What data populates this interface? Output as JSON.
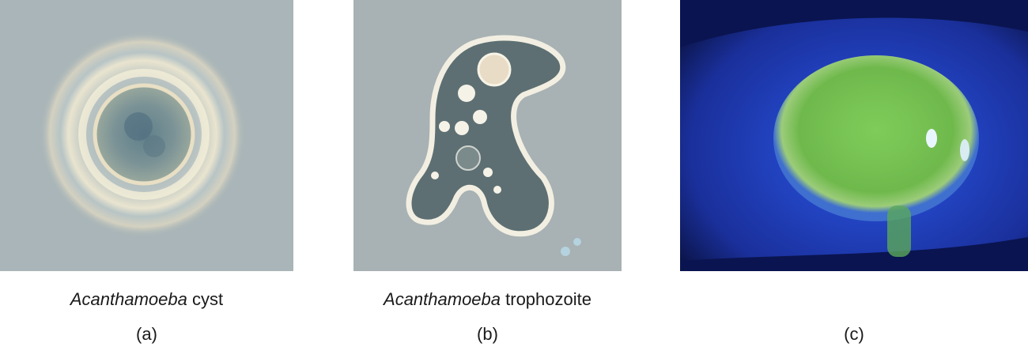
{
  "panels": [
    {
      "genus": "Acanthamoeba",
      "caption_rest": " cyst",
      "letter": "(a)"
    },
    {
      "genus": "Acanthamoeba",
      "caption_rest": " trophozoite",
      "letter": "(b)"
    },
    {
      "letter": "(c)"
    }
  ],
  "colors": {
    "micro_bg": "#a9b5b8",
    "eye_blue": "#1e3fd0",
    "cornea_green": "#7fcc5a"
  }
}
